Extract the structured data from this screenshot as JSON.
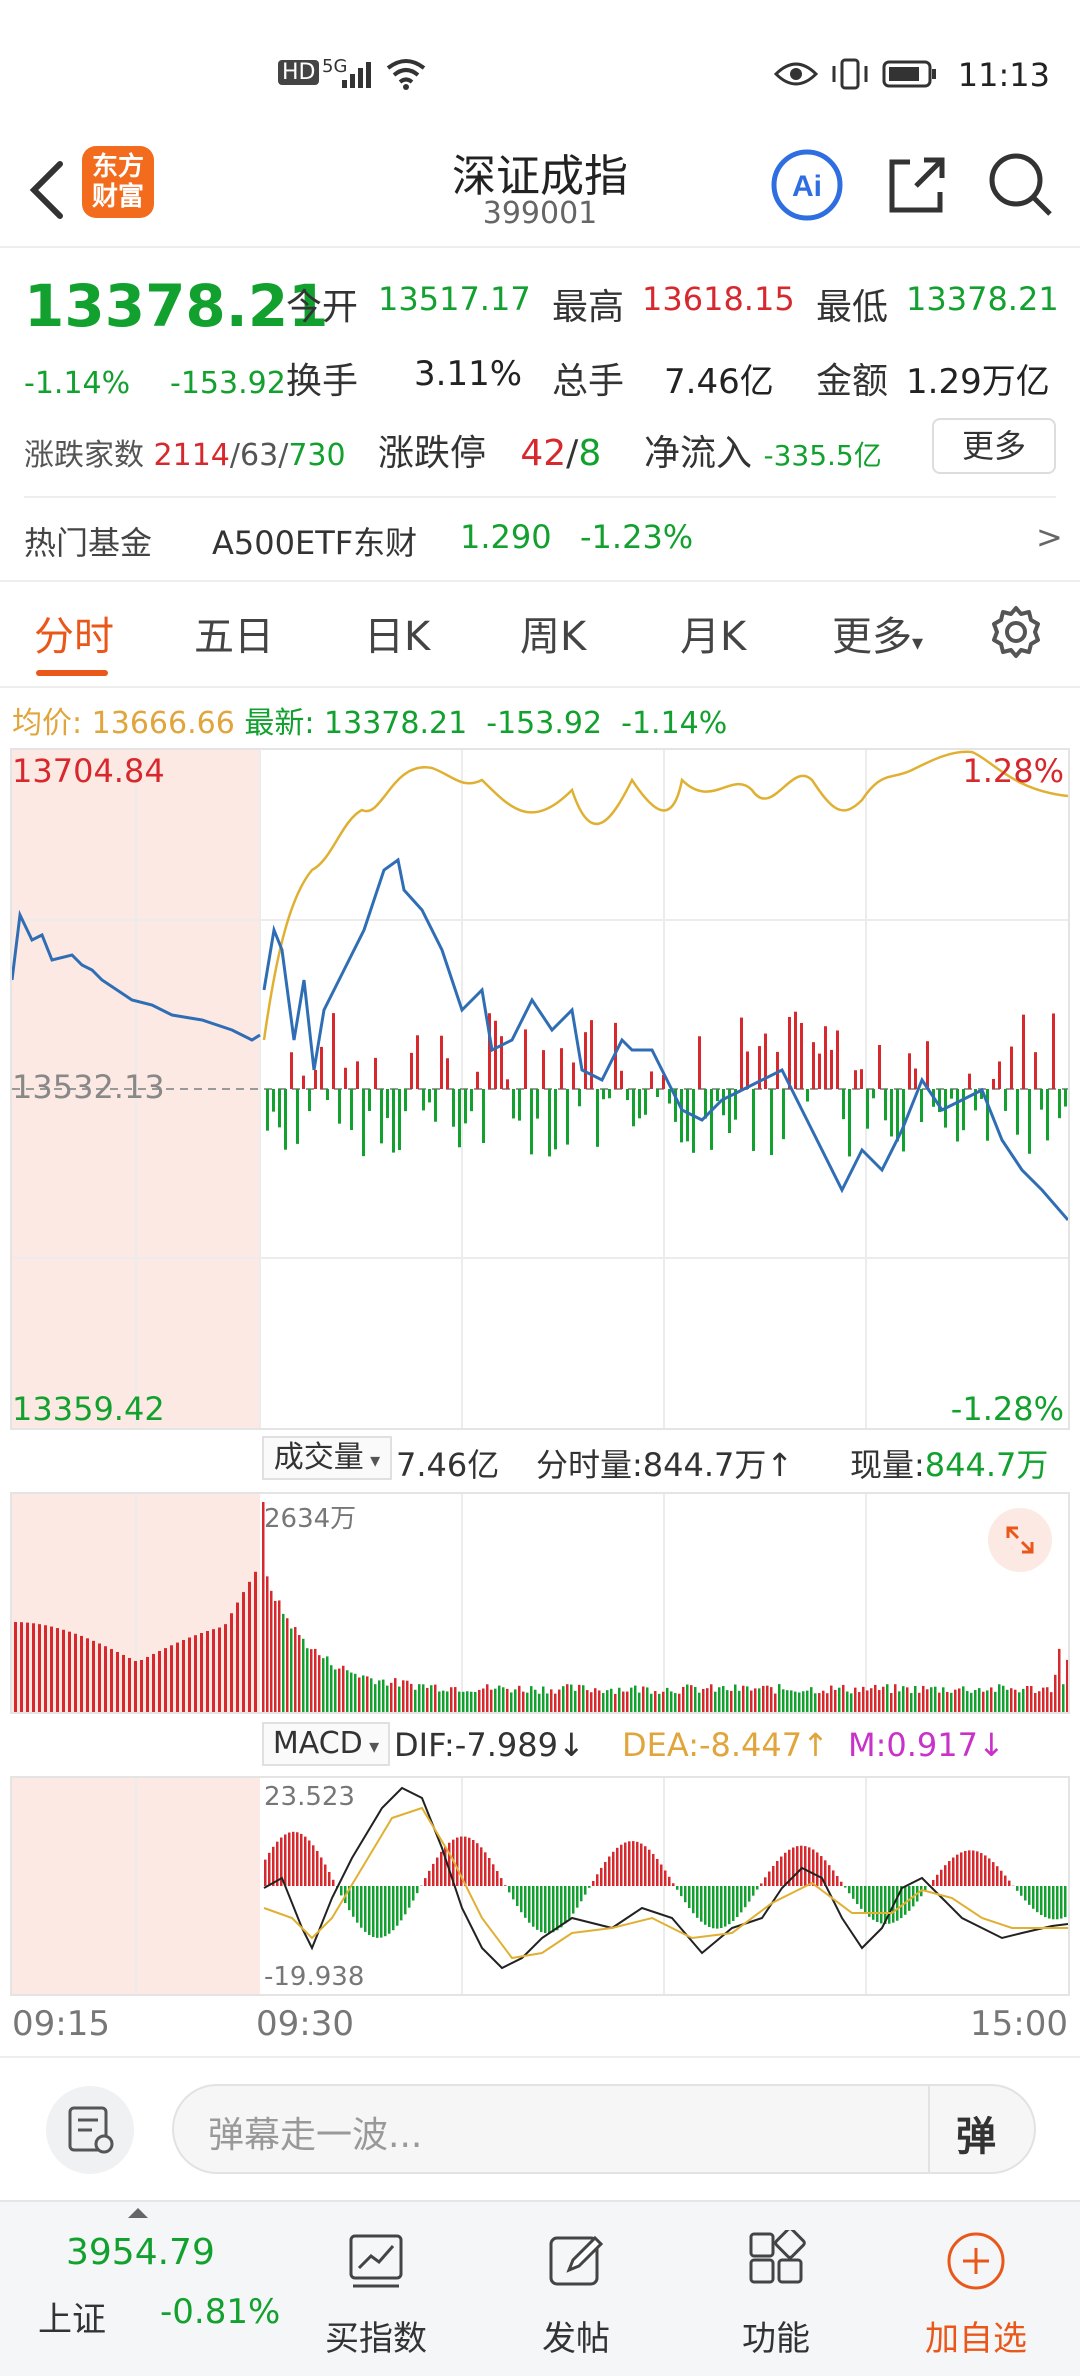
{
  "status": {
    "time": "11:13",
    "hd": "HD",
    "net": "5G",
    "battery": "battery-icon"
  },
  "header": {
    "title": "深证成指",
    "code": "399001",
    "logo_line1": "东方",
    "logo_line2": "财富",
    "ai_label": "Ai"
  },
  "quote": {
    "price": "13378.21",
    "change_pct": "-1.14%",
    "change": "-153.92",
    "open_label": "今开",
    "open": "13517.17",
    "high_label": "最高",
    "high": "13618.15",
    "low_label": "最低",
    "low": "13378.21",
    "turnover_label": "换手",
    "turnover": "3.11%",
    "volume_label": "总手",
    "volume": "7.46亿",
    "amount_label": "金额",
    "amount": "1.29万亿",
    "updown_label": "涨跌家数",
    "up": "2114",
    "flat": "63",
    "down": "730",
    "slash1": "/",
    "slash2": "/",
    "limit_label": "涨跌停",
    "limit_up": "42",
    "limit_down": "8",
    "netflow_label": "净流入",
    "netflow": "-335.5亿",
    "more": "更多"
  },
  "fund": {
    "label": "热门基金",
    "name": "A500ETF东财",
    "price": "1.290",
    "pct": "-1.23%",
    "arrow": ">"
  },
  "tabs": [
    "分时",
    "五日",
    "日K",
    "周K",
    "月K",
    "更多"
  ],
  "intraday": {
    "avg_label": "均价:",
    "avg": "13666.66",
    "latest_label": "最新:",
    "latest": "13378.21",
    "latest_chg": "-153.92",
    "latest_pct": "-1.14%",
    "y_top": "13704.84",
    "y_mid": "13532.13",
    "y_bottom": "13359.42",
    "pct_top": "1.28%",
    "pct_bottom": "-1.28%"
  },
  "volume_panel": {
    "selector": "成交量",
    "total": "7.46亿",
    "tick_label": "分时量:",
    "tick": "844.7万",
    "tick_arrow": "↑",
    "now_label": "现量:",
    "now": "844.7万",
    "max": "2634万"
  },
  "macd_panel": {
    "selector": "MACD",
    "dif": "DIF:-7.989",
    "dif_arrow": "↓",
    "dea": "DEA:-8.447",
    "dea_arrow": "↑",
    "m": "M:0.917",
    "m_arrow": "↓",
    "max": "23.523",
    "min": "-19.938"
  },
  "time_axis": {
    "start": "09:15",
    "open": "09:30",
    "end": "15:00"
  },
  "comment": {
    "placeholder": "弹幕走一波...",
    "danmu": "弹"
  },
  "bottom": {
    "index_value": "3954.79",
    "index_name": "上证",
    "index_pct": "-0.81%",
    "items": [
      "买指数",
      "发帖",
      "功能",
      "加自选"
    ]
  },
  "colors": {
    "up": "#d7282e",
    "down": "#12a12e",
    "avg": "#e0a53c",
    "price_line": "#2f6eb5",
    "accent": "#e9581a"
  }
}
